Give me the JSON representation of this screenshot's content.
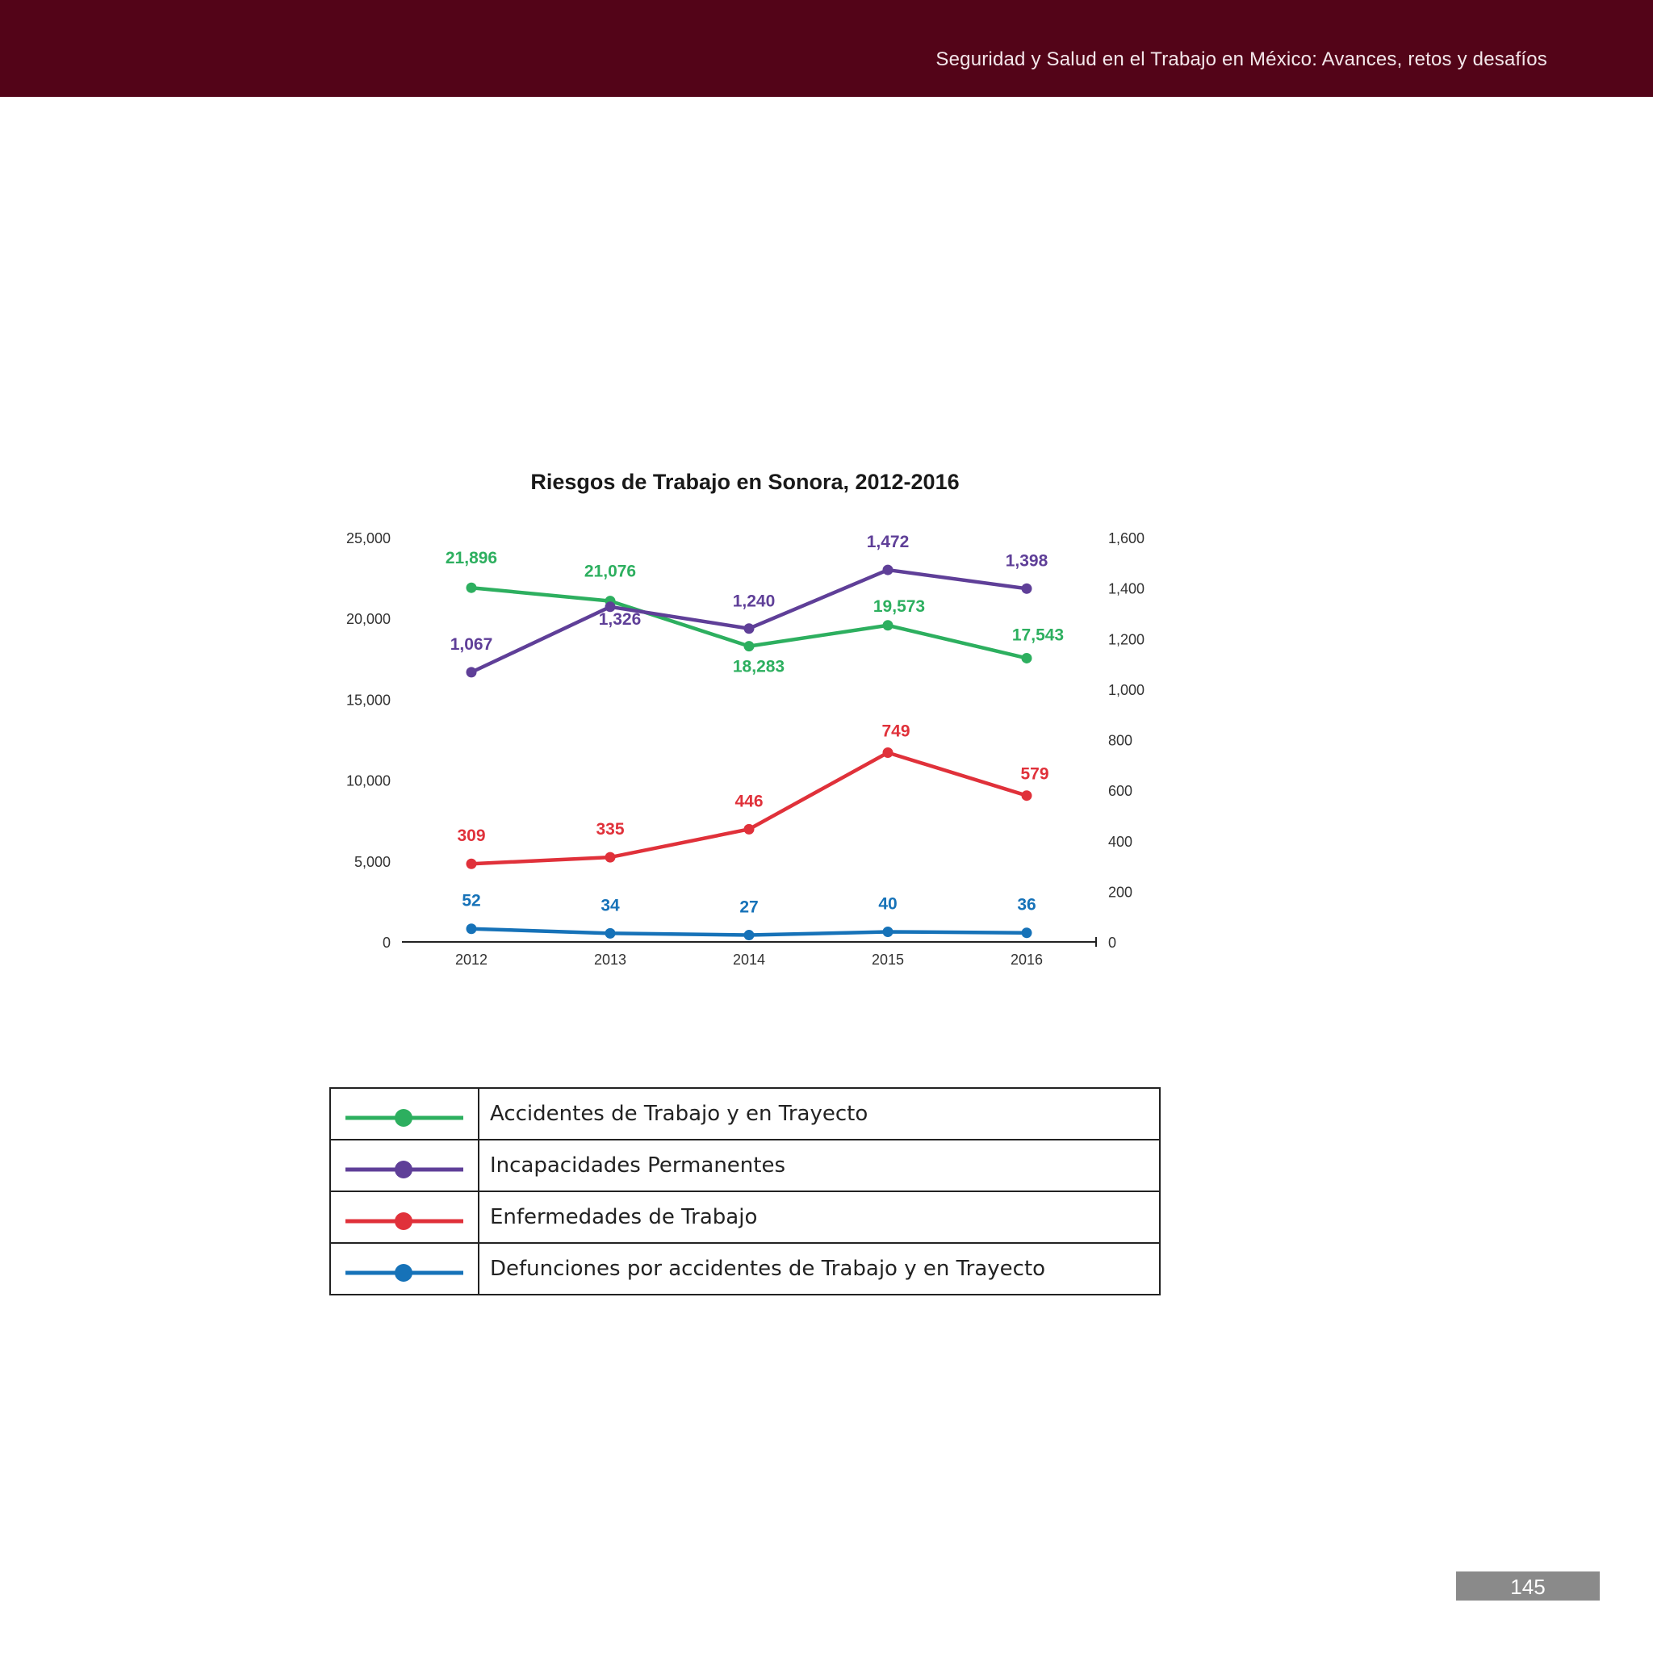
{
  "header": {
    "title": "Seguridad y Salud en el Trabajo en México: Avances, retos y desafíos"
  },
  "page": {
    "number": "145"
  },
  "chart_data": {
    "type": "line",
    "title": "Riesgos de Trabajo en Sonora, 2012-2016",
    "categories": [
      "2012",
      "2013",
      "2014",
      "2015",
      "2016"
    ],
    "y_left": {
      "range": [
        0,
        25000
      ],
      "ticks": [
        0,
        5000,
        10000,
        15000,
        20000,
        25000
      ],
      "tick_labels": [
        "0",
        "5,000",
        "10,000",
        "15,000",
        "20,000",
        "25,000"
      ]
    },
    "y_right": {
      "range": [
        0,
        1600
      ],
      "ticks": [
        0,
        200,
        400,
        600,
        800,
        1000,
        1200,
        1400,
        1600
      ],
      "tick_labels": [
        "0",
        "200",
        "400",
        "600",
        "800",
        "1,000",
        "1,200",
        "1,400",
        "1,600"
      ]
    },
    "grid": false,
    "legend_placement": "bottom (table)",
    "series": [
      {
        "name": "Accidentes de Trabajo y en Trayecto",
        "axis": "left",
        "color": "#2daf5f",
        "values": [
          21896,
          21076,
          18283,
          19573,
          17543
        ],
        "labels": [
          "21,896",
          "21,076",
          "18,283",
          "19,573",
          "17,543"
        ]
      },
      {
        "name": "Incapacidades Permanentes",
        "axis": "right",
        "color": "#5f3f98",
        "values": [
          1067,
          1326,
          1240,
          1472,
          1398
        ],
        "labels": [
          "1,067",
          "1,326",
          "1,240",
          "1,472",
          "1,398"
        ]
      },
      {
        "name": "Enfermedades de Trabajo",
        "axis": "right",
        "color": "#e0313a",
        "values": [
          309,
          335,
          446,
          749,
          579
        ],
        "labels": [
          "309",
          "335",
          "446",
          "749",
          "579"
        ]
      },
      {
        "name": "Defunciones por accidentes de Trabajo y en Trayecto",
        "axis": "right",
        "color": "#1672b8",
        "values": [
          52,
          34,
          27,
          40,
          36
        ],
        "labels": [
          "52",
          "34",
          "27",
          "40",
          "36"
        ]
      }
    ]
  }
}
